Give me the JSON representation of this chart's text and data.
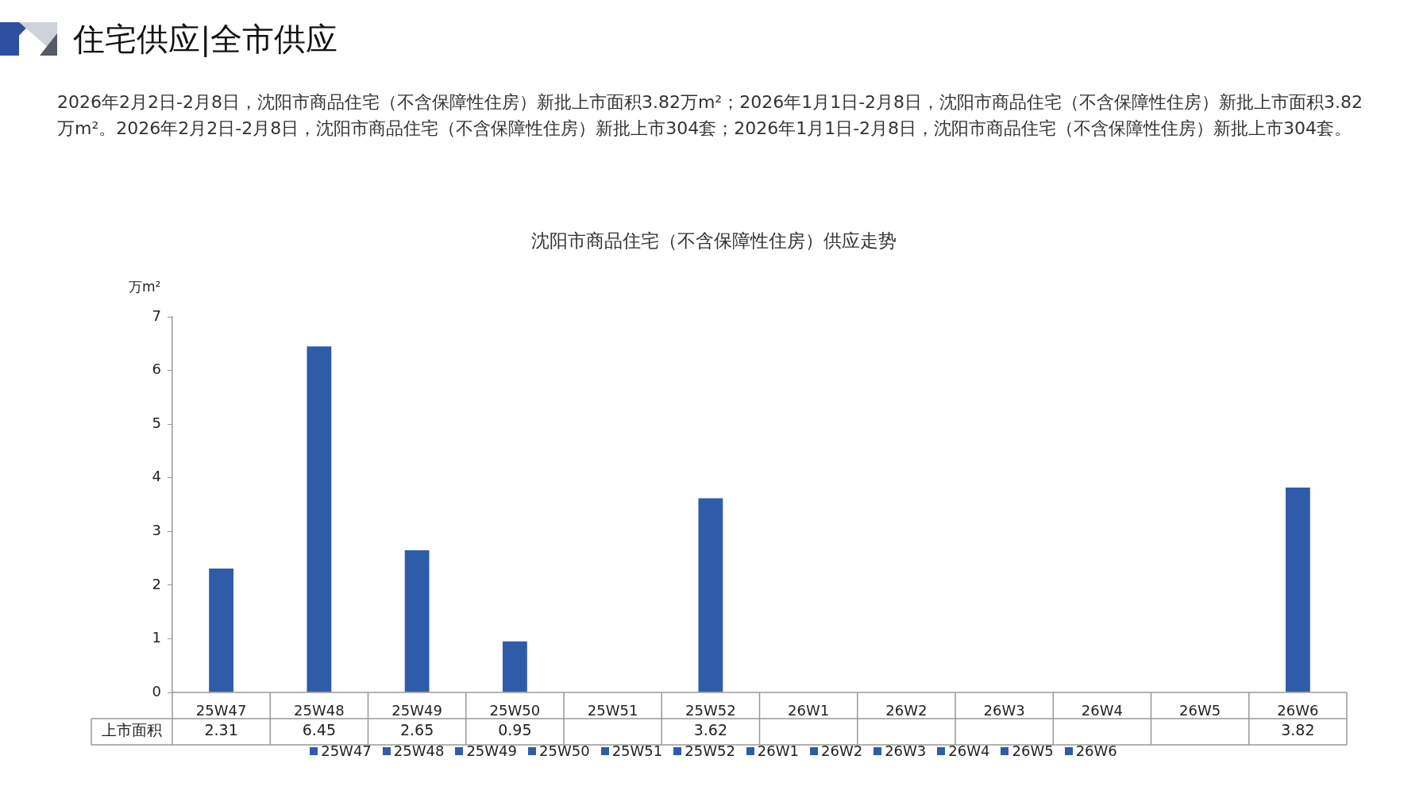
{
  "chart_data": {
    "type": "bar",
    "title": "沈阳市商品住宅（不含保障性住房）供应走势",
    "annotations": [
      "住宅供应|全市供应",
      "2026年2月2日-2月8日，沈阳市商品住宅（不含保障性住房）新批上市面积3.82万m²；2026年1月1日-2月8日，沈阳市商品住宅（不含保障性住房）新批上市面积3.82万m²。2026年2月2日-2月8日，沈阳市商品住宅（不含保障性住房）新批上市304套；2026年1月1日-2月8日，沈阳市商品住宅（不含保障性住房）新批上市304套。"
    ],
    "ylabel": "万m²",
    "categories": [
      "25W47",
      "25W48",
      "25W49",
      "25W50",
      "25W51",
      "25W52",
      "26W1",
      "26W2",
      "26W3",
      "26W4",
      "26W5",
      "26W6"
    ],
    "series": [
      {
        "name": "上市面积",
        "color": "#2e5ca8",
        "values": [
          2.31,
          6.45,
          2.65,
          0.95,
          null,
          3.62,
          null,
          null,
          null,
          null,
          null,
          3.82
        ]
      }
    ],
    "ylim": [
      0,
      7
    ],
    "yticks": [
      0,
      1,
      2,
      3,
      4,
      5,
      6,
      7
    ],
    "grid": false,
    "legend": "bottom",
    "data_labels": true
  }
}
